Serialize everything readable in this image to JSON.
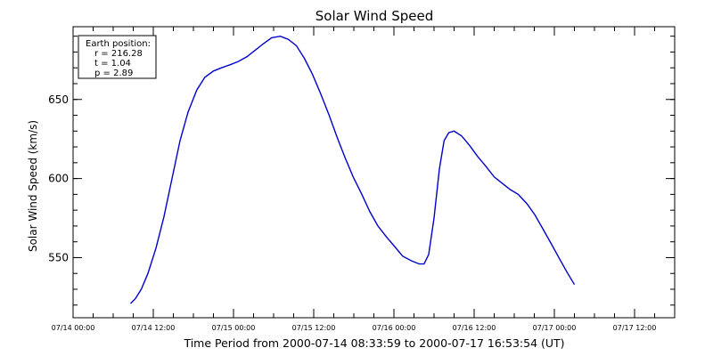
{
  "colors": {
    "line": "#0000cc",
    "axes": "#000000",
    "background": "#ffffff"
  },
  "chart_data": {
    "type": "line",
    "title": "Solar Wind Speed",
    "xlabel": "Time Period from 2000-07-14 08:33:59 to 2000-07-17 16:53:54 (UT)",
    "ylabel": "Solar Wind Speed (km/s)",
    "x_unit": "hours",
    "xlim": [
      0,
      90
    ],
    "ylim": [
      512,
      696
    ],
    "grid": false,
    "y_ticks": [
      550,
      600,
      650
    ],
    "y_minor_step": 10,
    "x_ticks": [
      {
        "x": 0,
        "label": "07/14 00:00"
      },
      {
        "x": 12,
        "label": "07/14 12:00"
      },
      {
        "x": 24,
        "label": "07/15 00:00"
      },
      {
        "x": 36,
        "label": "07/15 12:00"
      },
      {
        "x": 48,
        "label": "07/16 00:00"
      },
      {
        "x": 60,
        "label": "07/16 12:00"
      },
      {
        "x": 72,
        "label": "07/17 00:00"
      },
      {
        "x": 84,
        "label": "07/17 12:00"
      }
    ],
    "x_minor_step": 3,
    "legend": {
      "placement": "top-left",
      "lines": [
        "Earth position:",
        "r = 216.28",
        "t = 1.04",
        "p = 2.89"
      ]
    },
    "series": [
      {
        "points": [
          [
            8.6,
            521
          ],
          [
            9.3,
            524
          ],
          [
            10.2,
            530
          ],
          [
            11.2,
            540
          ],
          [
            12.4,
            556
          ],
          [
            13.6,
            576
          ],
          [
            14.8,
            600
          ],
          [
            16.0,
            624
          ],
          [
            17.2,
            642
          ],
          [
            18.5,
            656
          ],
          [
            19.7,
            664
          ],
          [
            21.0,
            668
          ],
          [
            22.2,
            670
          ],
          [
            23.5,
            672
          ],
          [
            24.7,
            674
          ],
          [
            26.0,
            677
          ],
          [
            27.2,
            681
          ],
          [
            28.4,
            685
          ],
          [
            29.7,
            689
          ],
          [
            31.0,
            690
          ],
          [
            32.2,
            688
          ],
          [
            33.4,
            684
          ],
          [
            34.6,
            676
          ],
          [
            35.8,
            666
          ],
          [
            37.0,
            654
          ],
          [
            38.3,
            640
          ],
          [
            39.5,
            626
          ],
          [
            40.7,
            613
          ],
          [
            41.9,
            601
          ],
          [
            43.2,
            590
          ],
          [
            44.4,
            579
          ],
          [
            45.6,
            570
          ],
          [
            46.9,
            563
          ],
          [
            48.1,
            557
          ],
          [
            49.3,
            551
          ],
          [
            50.6,
            548
          ],
          [
            51.8,
            546
          ],
          [
            52.5,
            546
          ],
          [
            53.2,
            552
          ],
          [
            54.0,
            575
          ],
          [
            54.8,
            606
          ],
          [
            55.5,
            624
          ],
          [
            56.2,
            629
          ],
          [
            57.0,
            630
          ],
          [
            58.1,
            627
          ],
          [
            59.3,
            621
          ],
          [
            60.5,
            614
          ],
          [
            61.7,
            608
          ],
          [
            63.0,
            601
          ],
          [
            64.2,
            597
          ],
          [
            65.4,
            593
          ],
          [
            66.6,
            590
          ],
          [
            67.9,
            584
          ],
          [
            69.1,
            577
          ],
          [
            70.3,
            568
          ],
          [
            71.5,
            559
          ],
          [
            72.8,
            549
          ],
          [
            74.0,
            540
          ],
          [
            75.0,
            533
          ]
        ]
      }
    ]
  }
}
